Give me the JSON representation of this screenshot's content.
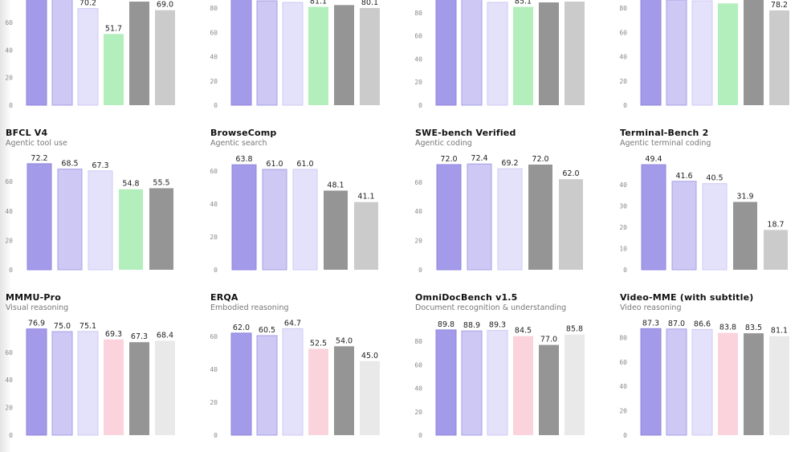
{
  "palette": {
    "model_1": "#a39bea",
    "model_2": "#cdc8f4",
    "model_3": "#e4e1fa",
    "green": "#b3efbc",
    "pink": "#fbd3dc",
    "dark_gray": "#959595",
    "light_gray": "#cbcbcb",
    "lighter_gray": "#e9e9e9",
    "model_1_stroke": "#8f86dd",
    "model_2_stroke": "#a79fe6",
    "model_3_stroke": "#cfcaf4"
  },
  "chart_data": [
    {
      "type": "bar",
      "title": "",
      "subtitle": "",
      "row": 1,
      "col": 1,
      "ylim": [
        0,
        80
      ],
      "yticks": [
        0,
        20,
        40,
        60
      ],
      "colors": [
        "model_1",
        "model_2",
        "model_3",
        "green",
        "dark_gray",
        "light_gray"
      ],
      "values": [
        78,
        78,
        70.2,
        51.7,
        75.2,
        69.0
      ],
      "labels": [
        "",
        "",
        "70.2",
        "51.7",
        "",
        "69.0"
      ],
      "note": "Top row cropped; titles and some value labels not visible"
    },
    {
      "type": "bar",
      "title": "",
      "subtitle": "",
      "row": 1,
      "col": 2,
      "ylim": [
        0,
        90
      ],
      "yticks": [
        0,
        20,
        40,
        60,
        80
      ],
      "colors": [
        "model_1",
        "model_2",
        "model_3",
        "green",
        "dark_gray",
        "light_gray"
      ],
      "values": [
        88,
        86.1,
        84.8,
        81.1,
        82.6,
        80.1
      ],
      "labels": [
        "",
        "",
        "",
        "81.1",
        "",
        "80.1"
      ]
    },
    {
      "type": "bar",
      "title": "",
      "subtitle": "",
      "row": 1,
      "col": 3,
      "ylim": [
        0,
        95
      ],
      "yticks": [
        0,
        20,
        40,
        60,
        80
      ],
      "colors": [
        "model_1",
        "model_2",
        "model_3",
        "green",
        "dark_gray",
        "light_gray"
      ],
      "values": [
        92,
        92,
        88.9,
        85.1,
        88.9,
        89.6
      ],
      "labels": [
        "",
        "",
        "",
        "85.1",
        "",
        ""
      ]
    },
    {
      "type": "bar",
      "title": "",
      "subtitle": "",
      "row": 1,
      "col": 4,
      "ylim": [
        0,
        90
      ],
      "yticks": [
        0,
        20,
        40,
        60,
        80
      ],
      "colors": [
        "model_1",
        "model_2",
        "model_3",
        "green",
        "dark_gray",
        "light_gray"
      ],
      "values": [
        88,
        86.8,
        86.1,
        84.0,
        86.8,
        78.2
      ],
      "labels": [
        "",
        "",
        "",
        "",
        "",
        "78.2"
      ]
    },
    {
      "type": "bar",
      "title": "BFCL V4",
      "subtitle": "Agentic tool use",
      "row": 2,
      "col": 1,
      "ylim": [
        0,
        75
      ],
      "yticks": [
        0,
        20,
        40,
        60
      ],
      "colors": [
        "model_1",
        "model_2",
        "model_3",
        "green",
        "dark_gray"
      ],
      "values": [
        72.2,
        68.5,
        67.3,
        54.8,
        55.5
      ],
      "labels": [
        "72.2",
        "68.5",
        "67.3",
        "54.8",
        "55.5"
      ]
    },
    {
      "type": "bar",
      "title": "BrowseComp",
      "subtitle": "Agentic search",
      "row": 2,
      "col": 2,
      "ylim": [
        0,
        65
      ],
      "yticks": [
        0,
        20,
        40,
        60
      ],
      "colors": [
        "model_1",
        "model_2",
        "model_3",
        "dark_gray",
        "light_gray"
      ],
      "values": [
        63.8,
        61.0,
        61.0,
        48.1,
        41.1
      ],
      "labels": [
        "63.8",
        "61.0",
        "61.0",
        "48.1",
        "41.1"
      ]
    },
    {
      "type": "bar",
      "title": "SWE-bench Verified",
      "subtitle": "Agentic coding",
      "row": 2,
      "col": 3,
      "ylim": [
        0,
        75
      ],
      "yticks": [
        0,
        20,
        40,
        60
      ],
      "colors": [
        "model_1",
        "model_2",
        "model_3",
        "dark_gray",
        "light_gray"
      ],
      "values": [
        72.0,
        72.4,
        69.2,
        72.0,
        62.0
      ],
      "labels": [
        "72.0",
        "72.4",
        "69.2",
        "72.0",
        "62.0"
      ]
    },
    {
      "type": "bar",
      "title": "Terminal-Bench 2",
      "subtitle": "Agentic terminal coding",
      "row": 2,
      "col": 4,
      "ylim": [
        0,
        50
      ],
      "yticks": [
        0,
        10,
        20,
        30,
        40
      ],
      "colors": [
        "model_1",
        "model_2",
        "model_3",
        "dark_gray",
        "light_gray"
      ],
      "values": [
        49.4,
        41.6,
        40.5,
        31.9,
        18.7
      ],
      "labels": [
        "49.4",
        "41.6",
        "40.5",
        "31.9",
        "18.7"
      ]
    },
    {
      "type": "bar",
      "title": "MMMU-Pro",
      "subtitle": "Visual reasoning",
      "row": 3,
      "col": 1,
      "ylim": [
        0,
        80
      ],
      "yticks": [
        0,
        20,
        40,
        60
      ],
      "colors": [
        "model_1",
        "model_2",
        "model_3",
        "pink",
        "dark_gray",
        "lighter_gray"
      ],
      "values": [
        76.9,
        75.0,
        75.1,
        69.3,
        67.3,
        68.4
      ],
      "labels": [
        "76.9",
        "75.0",
        "75.1",
        "69.3",
        "67.3",
        "68.4"
      ]
    },
    {
      "type": "bar",
      "title": "ERQA",
      "subtitle": "Embodied reasoning",
      "row": 3,
      "col": 2,
      "ylim": [
        0,
        65
      ],
      "yticks": [
        0,
        20,
        40,
        60
      ],
      "colors": [
        "model_1",
        "model_2",
        "model_3",
        "pink",
        "dark_gray",
        "lighter_gray"
      ],
      "values": [
        62.0,
        60.5,
        64.7,
        52.5,
        54.0,
        45.0
      ],
      "labels": [
        "62.0",
        "60.5",
        "64.7",
        "52.5",
        "54.0",
        "45.0"
      ]
    },
    {
      "type": "bar",
      "title": "OmniDocBench v1.5",
      "subtitle": "Document recognition & understanding",
      "row": 3,
      "col": 3,
      "ylim": [
        0,
        90
      ],
      "yticks": [
        0,
        20,
        40,
        60,
        80
      ],
      "colors": [
        "model_1",
        "model_2",
        "model_3",
        "pink",
        "dark_gray",
        "lighter_gray"
      ],
      "values": [
        89.8,
        88.9,
        89.3,
        84.5,
        77.0,
        85.8
      ],
      "labels": [
        "89.8",
        "88.9",
        "89.3",
        "84.5",
        "77.0",
        "85.8"
      ]
    },
    {
      "type": "bar",
      "title": "Video-MME (with subtitle)",
      "subtitle": "Video reasoning",
      "row": 3,
      "col": 4,
      "ylim": [
        0,
        90
      ],
      "yticks": [
        0,
        20,
        40,
        60,
        80
      ],
      "colors": [
        "model_1",
        "model_2",
        "model_3",
        "pink",
        "dark_gray",
        "lighter_gray"
      ],
      "values": [
        87.3,
        87.0,
        86.6,
        83.8,
        83.5,
        81.1
      ],
      "labels": [
        "87.3",
        "87.0",
        "86.6",
        "83.8",
        "83.5",
        "81.1"
      ]
    }
  ]
}
